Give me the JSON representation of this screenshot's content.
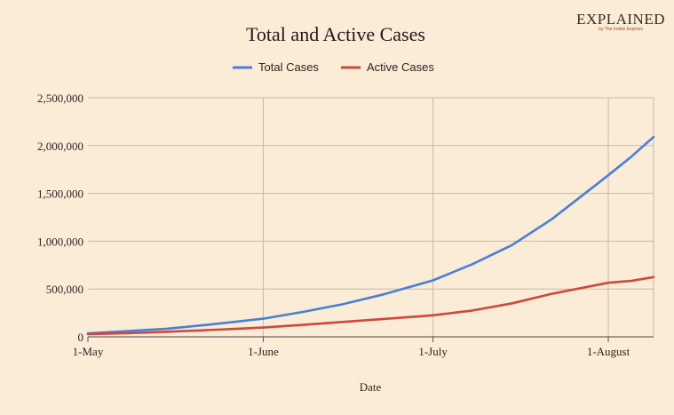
{
  "logo": {
    "text": "EXPLAINED",
    "tagline": "by The Indian Express"
  },
  "colors": {
    "background": "#fbecd7",
    "total": "#4a7fd6",
    "active": "#d2473b",
    "grid": "#c9baa3",
    "axis": "#444444"
  },
  "chart_data": {
    "type": "line",
    "title": "Total and Active Cases",
    "xlabel": "Date",
    "ylabel": "",
    "ylim": [
      0,
      2500000
    ],
    "yticks": [
      0,
      500000,
      1000000,
      1500000,
      2000000,
      2500000
    ],
    "ytick_labels": [
      "0",
      "500,000",
      "1,000,000",
      "1,500,000",
      "2,000,000",
      "2,500,000"
    ],
    "xlim": [
      "2020-05-01",
      "2020-08-09"
    ],
    "xticks": [
      "2020-05-01",
      "2020-06-01",
      "2020-07-01",
      "2020-08-01"
    ],
    "xtick_labels": [
      "1-May",
      "1-June",
      "1-July",
      "1-August"
    ],
    "legend_position": "top-center",
    "grid": true,
    "x": [
      "2020-05-01",
      "2020-05-08",
      "2020-05-15",
      "2020-05-22",
      "2020-06-01",
      "2020-06-08",
      "2020-06-15",
      "2020-06-22",
      "2020-07-01",
      "2020-07-08",
      "2020-07-15",
      "2020-07-22",
      "2020-08-01",
      "2020-08-05",
      "2020-08-09"
    ],
    "series": [
      {
        "name": "Total Cases",
        "color": "#4a7fd6",
        "values": [
          35000,
          60000,
          85000,
          125000,
          190000,
          260000,
          340000,
          440000,
          590000,
          760000,
          960000,
          1230000,
          1690000,
          1880000,
          2090000
        ]
      },
      {
        "name": "Active Cases",
        "color": "#d2473b",
        "values": [
          28000,
          38000,
          53000,
          70000,
          97000,
          125000,
          155000,
          185000,
          225000,
          275000,
          350000,
          450000,
          565000,
          585000,
          625000
        ]
      }
    ]
  }
}
